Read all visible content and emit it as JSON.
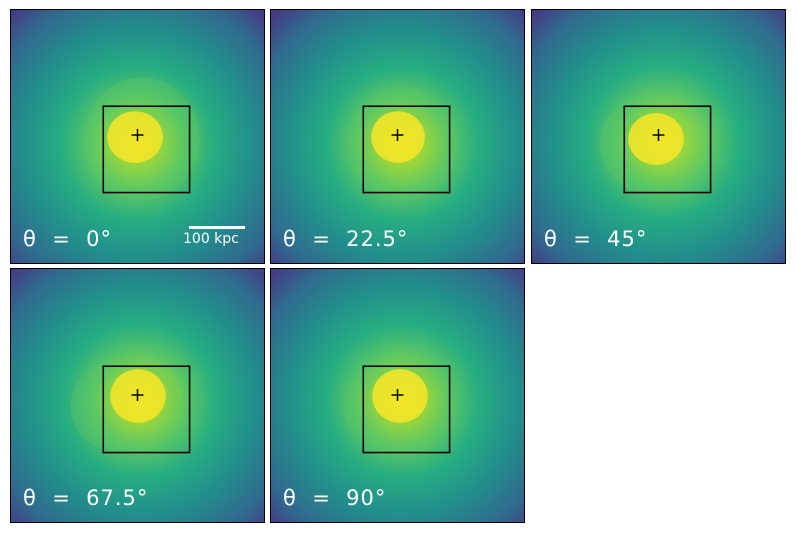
{
  "panels": [
    {
      "label": "θ  =  0°",
      "scale_bar_label": "100 kpc"
    },
    {
      "label": "θ  =  22.5°"
    },
    {
      "label": "θ  =  45°"
    },
    {
      "label": "θ  =  67.5°"
    },
    {
      "label": "θ  =  90°"
    }
  ],
  "colormap": {
    "low": "#440154",
    "mid_low": "#3b528b",
    "mid": "#21908c",
    "mid_high": "#5dc863",
    "high": "#fde725"
  },
  "marker_icon": "plus-marker",
  "colors": {
    "label_text": "#ffffff",
    "frame": "#000000"
  }
}
